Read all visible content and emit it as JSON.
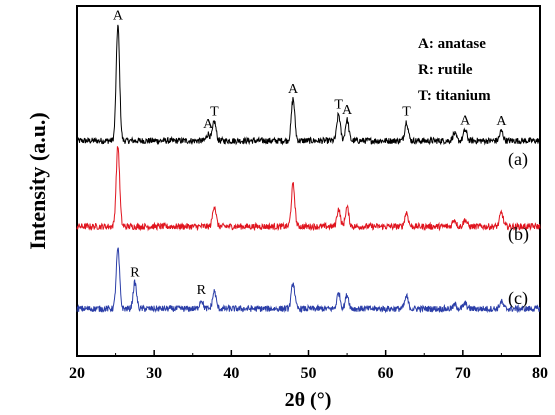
{
  "chart_data": {
    "type": "line",
    "xlabel": "2θ (°)",
    "ylabel": "Intensity (a.u.)",
    "xlim": [
      20,
      80
    ],
    "xticks": [
      "20",
      "30",
      "40",
      "50",
      "60",
      "70",
      "80"
    ],
    "grid": false,
    "legend": {
      "position": "top-right",
      "entries": [
        "A: anatase",
        "R: rutile",
        "T: titanium"
      ]
    },
    "colors": {
      "a": "#000000",
      "b": "#e0141e",
      "c": "#2b3ea8"
    },
    "series": [
      {
        "name": "(a)",
        "baseline": 0.615,
        "peaks": [
          {
            "x": 25.3,
            "h": 0.33,
            "label": "A"
          },
          {
            "x": 37.8,
            "h": 0.055,
            "label": "T"
          },
          {
            "x": 37.0,
            "h": 0.02,
            "label": "A"
          },
          {
            "x": 48.0,
            "h": 0.12,
            "label": "A"
          },
          {
            "x": 53.9,
            "h": 0.075,
            "label": "T"
          },
          {
            "x": 55.0,
            "h": 0.06,
            "label": "A"
          },
          {
            "x": 62.7,
            "h": 0.055,
            "label": "T"
          },
          {
            "x": 68.9,
            "h": 0.02,
            "label": ""
          },
          {
            "x": 70.3,
            "h": 0.03,
            "label": "A"
          },
          {
            "x": 75.0,
            "h": 0.028,
            "label": "A"
          }
        ]
      },
      {
        "name": "(b)",
        "baseline": 0.37,
        "peaks": [
          {
            "x": 25.3,
            "h": 0.23
          },
          {
            "x": 37.8,
            "h": 0.06
          },
          {
            "x": 48.0,
            "h": 0.12
          },
          {
            "x": 53.9,
            "h": 0.05
          },
          {
            "x": 55.0,
            "h": 0.055
          },
          {
            "x": 62.7,
            "h": 0.04
          },
          {
            "x": 68.9,
            "h": 0.02
          },
          {
            "x": 70.3,
            "h": 0.02
          },
          {
            "x": 75.0,
            "h": 0.04
          }
        ]
      },
      {
        "name": "(c)",
        "baseline": 0.135,
        "peaks": [
          {
            "x": 25.3,
            "h": 0.17
          },
          {
            "x": 27.5,
            "h": 0.075,
            "label": "R"
          },
          {
            "x": 36.1,
            "h": 0.025,
            "label": "R"
          },
          {
            "x": 37.8,
            "h": 0.05
          },
          {
            "x": 48.0,
            "h": 0.075
          },
          {
            "x": 53.9,
            "h": 0.045
          },
          {
            "x": 55.0,
            "h": 0.04
          },
          {
            "x": 62.7,
            "h": 0.035
          },
          {
            "x": 69.0,
            "h": 0.012
          },
          {
            "x": 70.3,
            "h": 0.015
          },
          {
            "x": 75.0,
            "h": 0.02
          }
        ]
      }
    ]
  },
  "legend_lines": {
    "anatase": "A: anatase",
    "rutile": "R: rutile",
    "titanium": "T: titanium"
  },
  "axis": {
    "xlabel": "2θ (°)",
    "ylabel": "Intensity (a.u.)"
  },
  "curve_labels": [
    "(a)",
    "(b)",
    "(c)"
  ]
}
